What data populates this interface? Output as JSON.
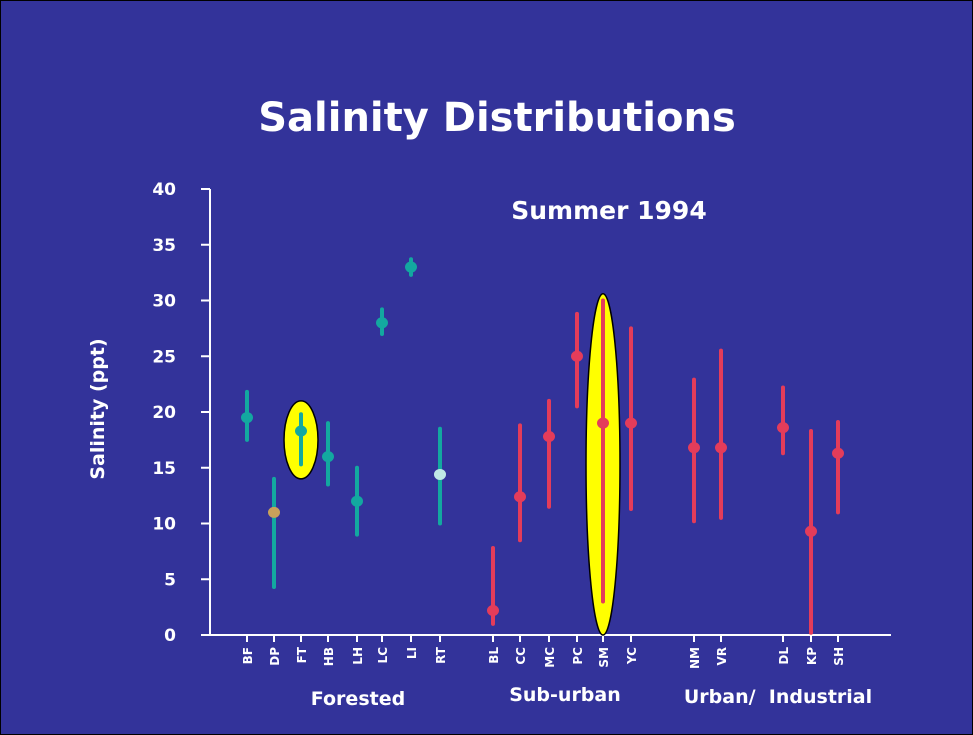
{
  "title": "Salinity Distributions",
  "colors": {
    "background": "#33339a",
    "forested": "#13a8a0",
    "other": "#e43c5a",
    "highlight": "#ffff00",
    "text": "#ffffff"
  },
  "chart_data": {
    "type": "error-bar",
    "subtitle": "Summer 1994",
    "ylabel": "Salinity (ppt)",
    "ylim": [
      0,
      40
    ],
    "yticks": [
      0,
      5,
      10,
      15,
      20,
      25,
      30,
      35,
      40
    ],
    "groups": [
      {
        "name": "Forested",
        "label": "Forested",
        "color": "forested",
        "sites": [
          {
            "site": "BF",
            "mean": 19.5,
            "low": 17.5,
            "high": 21.8
          },
          {
            "site": "DP",
            "mean": 11.0,
            "low": 4.3,
            "high": 14.0
          },
          {
            "site": "FT",
            "mean": 18.3,
            "low": 15.3,
            "high": 19.8,
            "highlight": true,
            "hl_low": 14.0,
            "hl_high": 21.0
          },
          {
            "site": "HB",
            "mean": 16.0,
            "low": 13.5,
            "high": 19.0
          },
          {
            "site": "LH",
            "mean": 12.0,
            "low": 9.0,
            "high": 15.0
          },
          {
            "site": "LC",
            "mean": 28.0,
            "low": 27.0,
            "high": 29.2
          },
          {
            "site": "LI",
            "mean": 33.0,
            "low": 32.3,
            "high": 33.7
          },
          {
            "site": "RT",
            "mean": 14.4,
            "low": 10.0,
            "high": 18.5
          }
        ]
      },
      {
        "name": "Sub-urban",
        "label": "Sub-urban",
        "color": "other",
        "sites": [
          {
            "site": "BL",
            "mean": 2.2,
            "low": 1.0,
            "high": 7.8
          },
          {
            "site": "CC",
            "mean": 12.4,
            "low": 8.5,
            "high": 18.8
          },
          {
            "site": "MC",
            "mean": 17.8,
            "low": 11.5,
            "high": 21.0
          },
          {
            "site": "PC",
            "mean": 25.0,
            "low": 20.5,
            "high": 28.8
          },
          {
            "site": "SM",
            "mean": 19.0,
            "low": 3.0,
            "high": 30.0,
            "highlight": true,
            "hl_low": 0.0,
            "hl_high": 30.6
          },
          {
            "site": "YC",
            "mean": 19.0,
            "low": 11.3,
            "high": 27.5
          }
        ]
      },
      {
        "name": "Urban/Industrial",
        "label": "Urban/  Industrial",
        "color": "other",
        "sites": [
          {
            "site": "NM",
            "mean": 16.8,
            "low": 10.2,
            "high": 22.9
          },
          {
            "site": "VR",
            "mean": 16.8,
            "low": 10.5,
            "high": 25.5
          },
          {
            "site": "DL",
            "mean": 18.6,
            "low": 16.3,
            "high": 22.2
          },
          {
            "site": "KP",
            "mean": 9.3,
            "low": 0.2,
            "high": 18.3
          },
          {
            "site": "SH",
            "mean": 16.3,
            "low": 11.0,
            "high": 19.1
          }
        ]
      }
    ]
  }
}
